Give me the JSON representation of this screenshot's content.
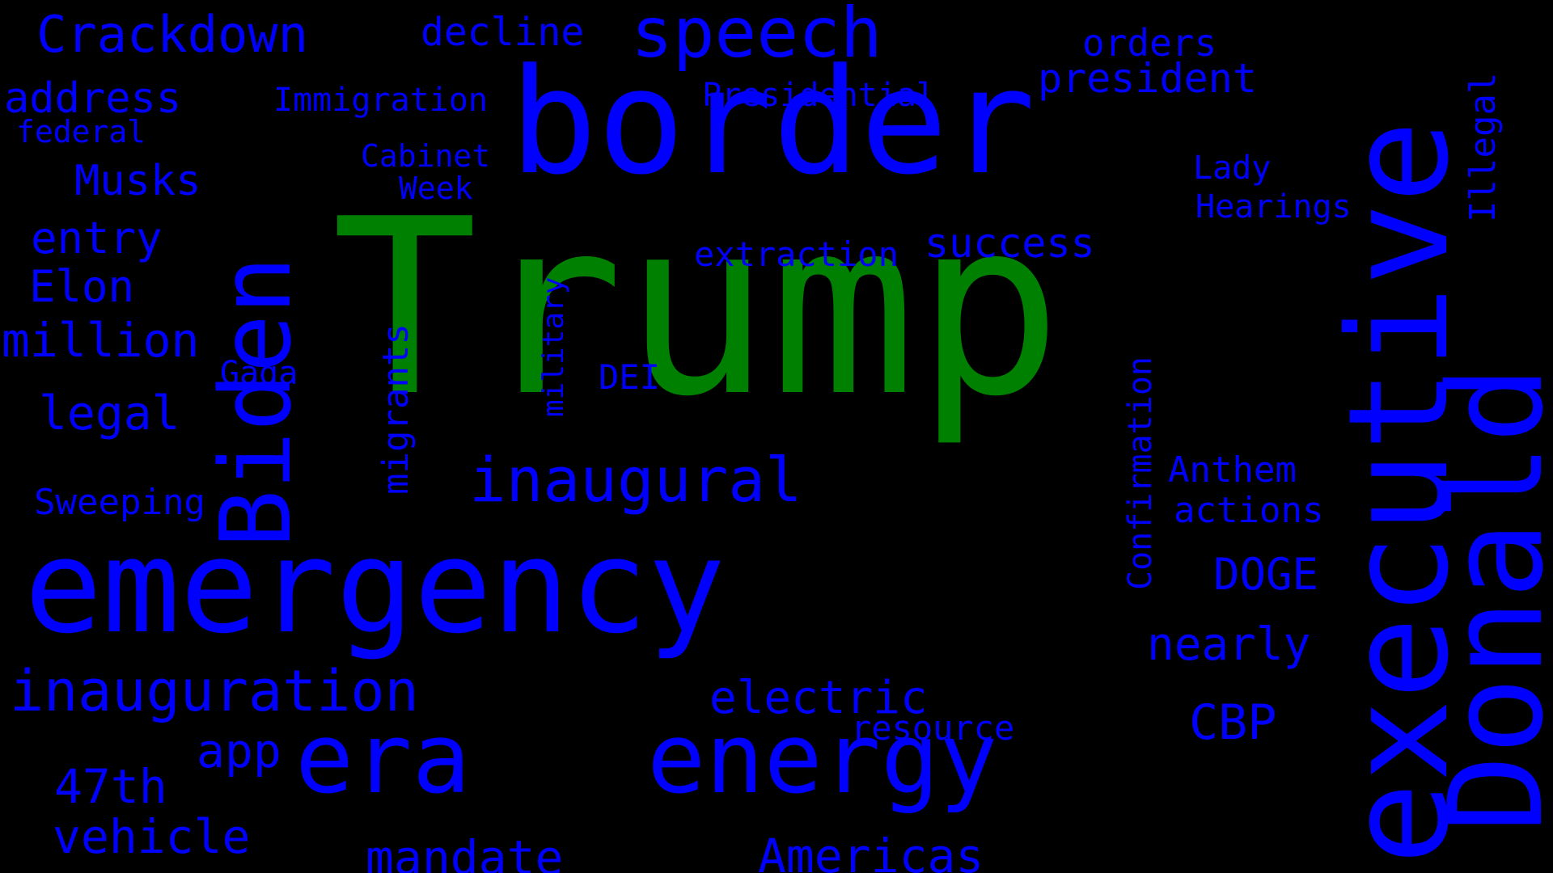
{
  "colors": {
    "background": "#000000",
    "primary": "#0000ff",
    "highlight": "#008000"
  },
  "words": [
    {
      "text": "Trump",
      "color": "highlight"
    },
    {
      "text": "border",
      "color": "primary"
    },
    {
      "text": "emergency",
      "color": "primary"
    },
    {
      "text": "era",
      "color": "primary"
    },
    {
      "text": "energy",
      "color": "primary"
    },
    {
      "text": "executive",
      "color": "primary"
    },
    {
      "text": "Donald",
      "color": "primary"
    },
    {
      "text": "Biden",
      "color": "primary"
    },
    {
      "text": "speech",
      "color": "primary"
    },
    {
      "text": "inaugural",
      "color": "primary"
    },
    {
      "text": "inauguration",
      "color": "primary"
    },
    {
      "text": "Crackdown",
      "color": "primary"
    },
    {
      "text": "decline",
      "color": "primary"
    },
    {
      "text": "orders",
      "color": "primary"
    },
    {
      "text": "president",
      "color": "primary"
    },
    {
      "text": "Illegal",
      "color": "primary"
    },
    {
      "text": "address",
      "color": "primary"
    },
    {
      "text": "Immigration",
      "color": "primary"
    },
    {
      "text": "Presidential",
      "color": "primary"
    },
    {
      "text": "federal",
      "color": "primary"
    },
    {
      "text": "Cabinet",
      "color": "primary"
    },
    {
      "text": "Week",
      "color": "primary"
    },
    {
      "text": "Musks",
      "color": "primary"
    },
    {
      "text": "Lady",
      "color": "primary"
    },
    {
      "text": "Hearings",
      "color": "primary"
    },
    {
      "text": "entry",
      "color": "primary"
    },
    {
      "text": "success",
      "color": "primary"
    },
    {
      "text": "extraction",
      "color": "primary"
    },
    {
      "text": "Elon",
      "color": "primary"
    },
    {
      "text": "million",
      "color": "primary"
    },
    {
      "text": "Gaga",
      "color": "primary"
    },
    {
      "text": "migrants",
      "color": "primary"
    },
    {
      "text": "military",
      "color": "primary"
    },
    {
      "text": "DEI",
      "color": "primary"
    },
    {
      "text": "legal",
      "color": "primary"
    },
    {
      "text": "Confirmation",
      "color": "primary"
    },
    {
      "text": "Anthem",
      "color": "primary"
    },
    {
      "text": "Sweeping",
      "color": "primary"
    },
    {
      "text": "actions",
      "color": "primary"
    },
    {
      "text": "DOGE",
      "color": "primary"
    },
    {
      "text": "nearly",
      "color": "primary"
    },
    {
      "text": "electric",
      "color": "primary"
    },
    {
      "text": "resource",
      "color": "primary"
    },
    {
      "text": "CBP",
      "color": "primary"
    },
    {
      "text": "app",
      "color": "primary"
    },
    {
      "text": "47th",
      "color": "primary"
    },
    {
      "text": "vehicle",
      "color": "primary"
    },
    {
      "text": "mandate",
      "color": "primary"
    },
    {
      "text": "Americas",
      "color": "primary"
    }
  ]
}
